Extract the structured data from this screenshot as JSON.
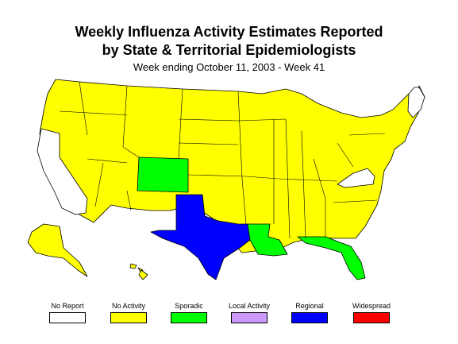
{
  "title_line1": "Weekly Influenza Activity Estimates Reported",
  "title_line2": "by State & Territorial Epidemiologists",
  "subtitle": "Week ending October 11, 2003 - Week 41",
  "legend": [
    {
      "label": "No Report",
      "color": "#ffffff"
    },
    {
      "label": "No Activity",
      "color": "#ffff00"
    },
    {
      "label": "Sporadic",
      "color": "#00ff00"
    },
    {
      "label": "Local Activity",
      "color": "#cc99ff"
    },
    {
      "label": "Regional",
      "color": "#0000ff"
    },
    {
      "label": "Widespread",
      "color": "#ff0000"
    }
  ],
  "activity": {
    "no_report": [
      "CA",
      "ME",
      "VA"
    ],
    "sporadic": [
      "CO",
      "LA",
      "FL"
    ],
    "regional": [
      "TX"
    ],
    "no_activity": "all other states"
  }
}
